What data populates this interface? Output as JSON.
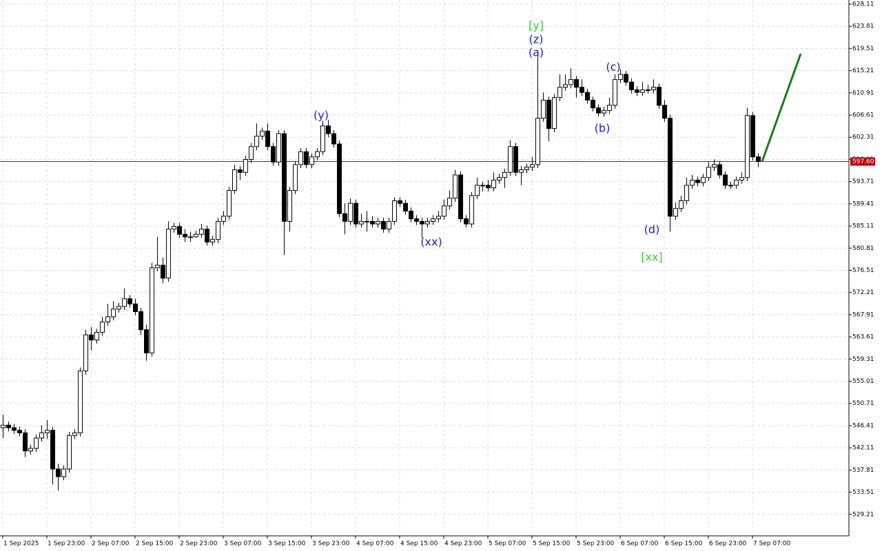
{
  "chart_data": {
    "type": "candlestick",
    "ylim": [
      525.04,
      628.91
    ],
    "yticks": [
      628.11,
      623.81,
      619.51,
      615.21,
      610.91,
      606.61,
      602.31,
      598.01,
      593.71,
      589.41,
      585.11,
      580.81,
      576.51,
      572.21,
      567.91,
      563.61,
      559.31,
      555.01,
      550.71,
      546.41,
      542.11,
      537.81,
      533.51,
      529.21
    ],
    "xlim": [
      -0.5,
      153.5
    ],
    "xticks": [
      {
        "value": 0,
        "label": "1 Sep 2025"
      },
      {
        "value": 8,
        "label": "1 Sep 23:00"
      },
      {
        "value": 16,
        "label": "2 Sep 07:00"
      },
      {
        "value": 24,
        "label": "2 Sep 15:00"
      },
      {
        "value": 32,
        "label": "2 Sep 23:00"
      },
      {
        "value": 40,
        "label": "3 Sep 07:00"
      },
      {
        "value": 48,
        "label": "3 Sep 15:00"
      },
      {
        "value": 56,
        "label": "3 Sep 23:00"
      },
      {
        "value": 64,
        "label": "4 Sep 07:00"
      },
      {
        "value": 72,
        "label": "4 Sep 15:00"
      },
      {
        "value": 80,
        "label": "4 Sep 23:00"
      },
      {
        "value": 88,
        "label": "5 Sep 07:00"
      },
      {
        "value": 96,
        "label": "5 Sep 15:00"
      },
      {
        "value": 104,
        "label": "5 Sep 23:00"
      },
      {
        "value": 112,
        "label": "6 Sep 07:00"
      },
      {
        "value": 120,
        "label": "6 Sep 15:00"
      },
      {
        "value": 128,
        "label": "6 Sep 23:00"
      },
      {
        "value": 136,
        "label": "7 Sep 07:00"
      }
    ],
    "grid": true,
    "up_color": "#ffffff",
    "down_color": "#000000",
    "ohlc": [
      [
        546,
        548.5,
        544,
        546.5
      ],
      [
        546.5,
        547.2,
        545.3,
        546
      ],
      [
        546,
        546.7,
        544.8,
        545.5
      ],
      [
        545.5,
        546.2,
        544.3,
        545
      ],
      [
        545,
        545.7,
        540.3,
        541.5
      ],
      [
        541.5,
        542.7,
        540.8,
        542
      ],
      [
        542,
        544.7,
        541.3,
        544
      ],
      [
        544,
        546.5,
        543.3,
        545
      ],
      [
        545,
        547.5,
        543.8,
        545.5
      ],
      [
        545.5,
        546.2,
        535,
        538
      ],
      [
        538,
        539,
        533.8,
        536.5
      ],
      [
        536.5,
        538.7,
        535.8,
        538
      ],
      [
        538,
        545.2,
        537.3,
        544.5
      ],
      [
        544.5,
        545.7,
        543.8,
        545
      ],
      [
        545,
        557.7,
        544.3,
        557
      ],
      [
        557,
        565,
        556.3,
        564
      ],
      [
        564,
        565.5,
        561,
        563
      ],
      [
        563,
        565.2,
        562.3,
        564.5
      ],
      [
        564.5,
        567.5,
        563.8,
        566.5
      ],
      [
        566.5,
        570,
        565.8,
        567.5
      ],
      [
        567.5,
        570.5,
        566.8,
        569
      ],
      [
        569,
        570.2,
        568.3,
        569.5
      ],
      [
        569.5,
        573,
        568.8,
        571
      ],
      [
        571,
        571.7,
        569.3,
        570
      ],
      [
        570,
        571,
        567.8,
        568.5
      ],
      [
        568.5,
        569.2,
        564,
        565
      ],
      [
        565,
        566,
        559,
        560.5
      ],
      [
        560.5,
        578,
        559.8,
        577
      ],
      [
        577,
        583,
        576.3,
        577.5
      ],
      [
        577.5,
        579,
        574,
        575
      ],
      [
        575,
        586,
        574.3,
        584.5
      ],
      [
        584.5,
        585.7,
        583.8,
        585
      ],
      [
        585,
        585.7,
        582.8,
        583.5
      ],
      [
        583.5,
        584.5,
        582,
        583
      ],
      [
        583,
        584,
        582,
        583
      ],
      [
        583,
        584.2,
        582.8,
        583.5
      ],
      [
        583.5,
        585.5,
        582.8,
        584.5
      ],
      [
        584.5,
        585.2,
        581.3,
        582
      ],
      [
        582,
        583.2,
        581.3,
        582.5
      ],
      [
        582.5,
        586.7,
        581.8,
        586
      ],
      [
        586,
        588,
        585.3,
        587
      ],
      [
        587,
        592.7,
        586.3,
        592
      ],
      [
        592,
        597,
        591.3,
        596
      ],
      [
        596,
        596.7,
        594,
        595.5
      ],
      [
        595.5,
        598.7,
        594.8,
        598
      ],
      [
        598,
        601.2,
        597.3,
        600.5
      ],
      [
        600.5,
        605,
        599.8,
        602.5
      ],
      [
        602.5,
        604.2,
        601.8,
        603.5
      ],
      [
        603.5,
        605,
        599.8,
        600.5
      ],
      [
        600.5,
        601.2,
        596.8,
        597.5
      ],
      [
        597.5,
        603.7,
        596.8,
        603
      ],
      [
        603,
        603.7,
        579.5,
        586
      ],
      [
        586,
        592.7,
        584,
        592
      ],
      [
        592,
        597.7,
        591.3,
        597
      ],
      [
        597,
        600.2,
        596.3,
        599.5
      ],
      [
        599.5,
        600.2,
        596.3,
        597
      ],
      [
        597,
        599.2,
        596.3,
        598.5
      ],
      [
        598.5,
        600.2,
        597.8,
        599.5
      ],
      [
        599.5,
        605.5,
        598.8,
        604.5
      ],
      [
        604.5,
        605.7,
        602.3,
        603
      ],
      [
        603,
        603.7,
        600.3,
        601
      ],
      [
        601,
        601.7,
        586.8,
        587.5
      ],
      [
        587.5,
        589.5,
        583.5,
        586
      ],
      [
        586,
        590.5,
        585.3,
        589.5
      ],
      [
        589.5,
        590.2,
        584.8,
        585.5
      ],
      [
        585.5,
        587.5,
        584.8,
        586
      ],
      [
        586,
        588,
        584,
        586
      ],
      [
        586,
        587,
        584.8,
        585.5
      ],
      [
        585.5,
        586.7,
        584.8,
        586
      ],
      [
        586,
        586.7,
        583.8,
        584.5
      ],
      [
        584.5,
        586.7,
        583.8,
        586
      ],
      [
        586,
        590.7,
        585.3,
        590
      ],
      [
        590,
        590.7,
        588.8,
        589.5
      ],
      [
        589.5,
        590.2,
        587.3,
        588
      ],
      [
        588,
        588.7,
        585.8,
        586.5
      ],
      [
        586.5,
        587.2,
        585.3,
        586
      ],
      [
        586,
        586.7,
        582.8,
        585.5
      ],
      [
        585.5,
        586.7,
        584.8,
        586
      ],
      [
        586,
        587.2,
        585.3,
        586.5
      ],
      [
        586.5,
        588,
        585.8,
        587
      ],
      [
        587,
        590.2,
        586.3,
        589
      ],
      [
        589,
        592,
        588.3,
        590.5
      ],
      [
        590.5,
        596,
        589.8,
        595
      ],
      [
        595,
        595.7,
        585.8,
        586.5
      ],
      [
        586.5,
        587.2,
        584.8,
        585.5
      ],
      [
        585.5,
        591.7,
        584.8,
        591
      ],
      [
        591,
        594.5,
        590.3,
        593
      ],
      [
        593,
        593.7,
        591.8,
        593
      ],
      [
        593,
        594,
        591.8,
        592.5
      ],
      [
        592.5,
        595.5,
        591.8,
        594
      ],
      [
        594,
        595.2,
        593.3,
        594.5
      ],
      [
        594.5,
        596.2,
        592.5,
        595.5
      ],
      [
        595.5,
        601.7,
        594.8,
        600.5
      ],
      [
        600.5,
        601.2,
        594.8,
        595.5
      ],
      [
        595.5,
        596.7,
        593,
        596
      ],
      [
        596,
        597.2,
        595.3,
        596.5
      ],
      [
        596.5,
        598.5,
        595.8,
        597
      ],
      [
        597,
        619.2,
        596.3,
        606
      ],
      [
        606,
        611,
        605.3,
        609.5
      ],
      [
        609.5,
        610.2,
        601.5,
        604
      ],
      [
        604,
        610.7,
        603.3,
        610
      ],
      [
        610,
        614.5,
        609.3,
        612
      ],
      [
        612,
        614.5,
        611.3,
        612.5
      ],
      [
        612.5,
        615.7,
        611.8,
        613.5
      ],
      [
        613.5,
        614.2,
        610,
        612
      ],
      [
        612,
        613.5,
        610.3,
        611
      ],
      [
        611,
        611.7,
        608.8,
        609.5
      ],
      [
        609.5,
        610.2,
        607.3,
        608
      ],
      [
        608,
        608.7,
        606.3,
        607
      ],
      [
        607,
        608.2,
        606.3,
        607.5
      ],
      [
        607.5,
        610,
        606.8,
        608.5
      ],
      [
        608.5,
        614.5,
        607.8,
        613.5
      ],
      [
        613.5,
        615.5,
        612.8,
        614.5
      ],
      [
        614.5,
        615.2,
        612.3,
        613
      ],
      [
        613,
        613.7,
        610.8,
        611.5
      ],
      [
        611.5,
        612.2,
        610.3,
        611
      ],
      [
        611,
        613,
        610.3,
        611.5
      ],
      [
        611.5,
        612.5,
        610.8,
        611.5
      ],
      [
        611.5,
        613.5,
        610.8,
        612
      ],
      [
        612,
        612.7,
        607.8,
        608.5
      ],
      [
        608.5,
        609.5,
        605.3,
        606
      ],
      [
        606,
        606.7,
        584,
        587
      ],
      [
        587,
        589.7,
        586.3,
        588.5
      ],
      [
        588.5,
        591,
        587.8,
        590
      ],
      [
        590,
        594.5,
        589.3,
        593
      ],
      [
        593,
        595,
        592.3,
        594
      ],
      [
        594,
        594.7,
        592.8,
        593.5
      ],
      [
        593.5,
        595.2,
        592.8,
        594.5
      ],
      [
        594.5,
        597.5,
        593.8,
        596.5
      ],
      [
        596.5,
        598,
        595.8,
        597
      ],
      [
        597,
        597.7,
        594.3,
        595
      ],
      [
        595,
        595.7,
        592.3,
        593
      ],
      [
        593,
        593.7,
        592.3,
        593
      ],
      [
        593,
        594.7,
        592.3,
        594
      ],
      [
        594,
        595.5,
        593.3,
        594.5
      ],
      [
        594.5,
        608,
        593.8,
        606.5
      ],
      [
        606.5,
        607.2,
        597.8,
        598.5
      ],
      [
        598.5,
        599.2,
        596.5,
        597.6
      ]
    ],
    "last_price": {
      "value": 597.6,
      "label": "597.60",
      "color": "#c00000"
    },
    "projection": {
      "x": [
        137.75,
        144.75
      ],
      "values": [
        597.6,
        618.5
      ],
      "color": "#1a7a1a"
    },
    "annotations": [
      {
        "text": "[y]",
        "color": "#33cc33"
      },
      {
        "text": "(z)",
        "color": "#1a1acc"
      },
      {
        "text": "(a)",
        "color": "#1a1acc"
      },
      {
        "text": "(y)",
        "color": "#1a1acc"
      },
      {
        "text": "(xx)",
        "color": "#1a1acc"
      },
      {
        "text": "(c)",
        "color": "#1a1acc"
      },
      {
        "text": "(b)",
        "color": "#1a1acc"
      },
      {
        "text": "(d)",
        "color": "#1a1acc"
      },
      {
        "text": "[xx]",
        "color": "#33cc33"
      }
    ]
  }
}
